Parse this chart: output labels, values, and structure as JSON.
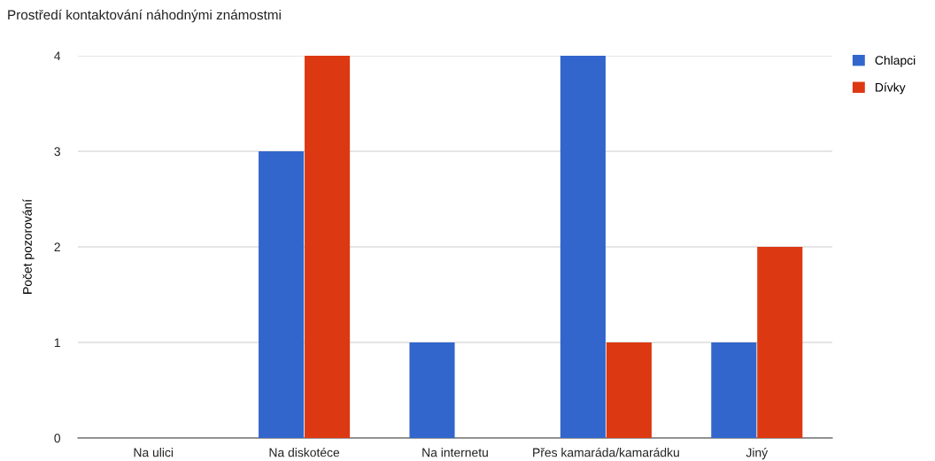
{
  "chart_data": {
    "type": "bar",
    "title": "Prostředí kontaktování náhodnými známostmi",
    "ylabel": "Počet pozorování",
    "categories": [
      "Na ulici",
      "Na diskotéce",
      "Na internetu",
      "Přes kamaráda/kamarádku",
      "Jiný"
    ],
    "series": [
      {
        "name": "Chlapci",
        "color": "#3366cc",
        "values": [
          0,
          3,
          1,
          4,
          1
        ]
      },
      {
        "name": "Dívky",
        "color": "#dc3912",
        "values": [
          0,
          4,
          0,
          1,
          2
        ]
      }
    ],
    "ylim": [
      0,
      4
    ],
    "yticks": [
      0,
      1,
      2,
      3,
      4
    ],
    "grid": "y",
    "legend": "top right"
  }
}
